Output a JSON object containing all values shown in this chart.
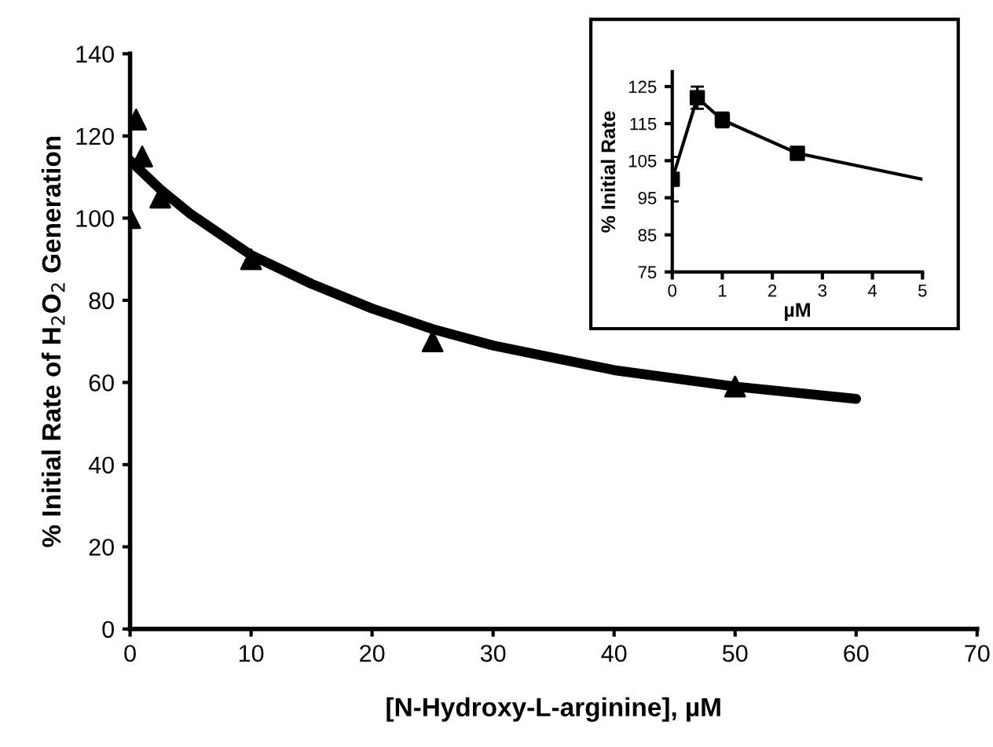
{
  "chart_data": [
    {
      "type": "scatter",
      "xlabel": "[N-Hydroxy-L-arginine], µM",
      "ylabel": "% Initial Rate of H$_{2}$O$_{2}$ Generation",
      "xlim": [
        0,
        70
      ],
      "ylim": [
        0,
        140
      ],
      "xticks": [
        0,
        10,
        20,
        30,
        40,
        50,
        60,
        70
      ],
      "yticks": [
        0,
        20,
        40,
        60,
        80,
        100,
        120,
        140
      ],
      "grid": false,
      "legend": false,
      "series": [
        {
          "color": "#000000",
          "marker": "triangle",
          "x": [
            0,
            0.5,
            1,
            2.5,
            10,
            25,
            50
          ],
          "values": [
            100,
            124,
            115,
            105,
            90,
            70,
            59
          ]
        },
        {
          "type": "line",
          "color": "#000000",
          "marker": "none",
          "line_style": "solid",
          "x": [
            0,
            2.5,
            5,
            10,
            15,
            20,
            25,
            30,
            40,
            50,
            60
          ],
          "values": [
            114,
            107,
            101,
            91,
            84,
            78,
            73,
            69,
            63,
            59,
            56
          ]
        }
      ]
    },
    {
      "type": "line",
      "xlabel": "µM",
      "ylabel": "% Initial Rate",
      "xlim": [
        0,
        5
      ],
      "ylim": [
        75,
        129
      ],
      "xticks": [
        0,
        1,
        2,
        3,
        4,
        5
      ],
      "yticks": [
        75,
        85,
        95,
        105,
        115,
        125
      ],
      "grid": false,
      "legend": false,
      "series": [
        {
          "color": "#000000",
          "marker": "none",
          "line_style": "solid",
          "x": [
            0,
            0.5,
            1,
            2.5,
            5
          ],
          "values": [
            100,
            122,
            116,
            107,
            100
          ]
        },
        {
          "type": "scatter",
          "color": "#000000",
          "marker": "square",
          "x": [
            0,
            0.5,
            1,
            2.5
          ],
          "values": [
            100,
            122,
            116,
            107
          ],
          "errors": [
            6,
            3,
            2,
            1
          ]
        }
      ]
    }
  ]
}
